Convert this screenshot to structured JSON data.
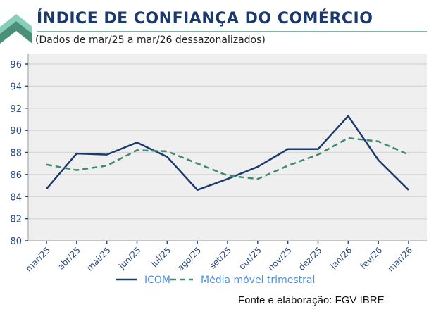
{
  "header": {
    "title": "ÍNDICE DE CONFIANÇA DO COMÉRCIO",
    "subtitle": "(Dados de mar/25 a mar/26 dessazonalizados)",
    "brand_icon": "chevron-up-icon"
  },
  "footer": {
    "source": "Fonte e elaboração: FGV IBRE"
  },
  "colors": {
    "title": "#1a3a6e",
    "icom": "#1a3a6e",
    "media": "#3f8a6c",
    "plot_bg": "#efefef",
    "grid": "#d8d8d8",
    "legend_text": "#4a8fe0"
  },
  "chart_data": {
    "type": "line",
    "title": "ÍNDICE DE CONFIANÇA DO COMÉRCIO",
    "subtitle": "(Dados de mar/25 a mar/26 dessazonalizados)",
    "xlabel": "",
    "ylabel": "",
    "categories": [
      "mar/25",
      "abr/25",
      "mai/25",
      "jun/25",
      "jul/25",
      "ago/25",
      "set/25",
      "out/25",
      "nov/25",
      "dez/25",
      "jan/26",
      "fev/26",
      "mar/26"
    ],
    "ylim": [
      80,
      96
    ],
    "yticks": [
      80,
      82,
      84,
      86,
      88,
      90,
      92,
      94,
      96
    ],
    "grid": true,
    "legend_position": "bottom",
    "series": [
      {
        "name": "ICOM",
        "style": "solid",
        "values": [
          84.7,
          87.9,
          87.8,
          88.9,
          87.6,
          84.6,
          85.6,
          86.7,
          88.3,
          88.3,
          91.3,
          87.3,
          84.6
        ]
      },
      {
        "name": "Média móvel trimestral",
        "style": "dashed",
        "values": [
          86.9,
          86.4,
          86.8,
          88.2,
          88.1,
          87.0,
          85.9,
          85.6,
          86.8,
          87.8,
          89.3,
          89.0,
          87.8
        ]
      }
    ]
  }
}
